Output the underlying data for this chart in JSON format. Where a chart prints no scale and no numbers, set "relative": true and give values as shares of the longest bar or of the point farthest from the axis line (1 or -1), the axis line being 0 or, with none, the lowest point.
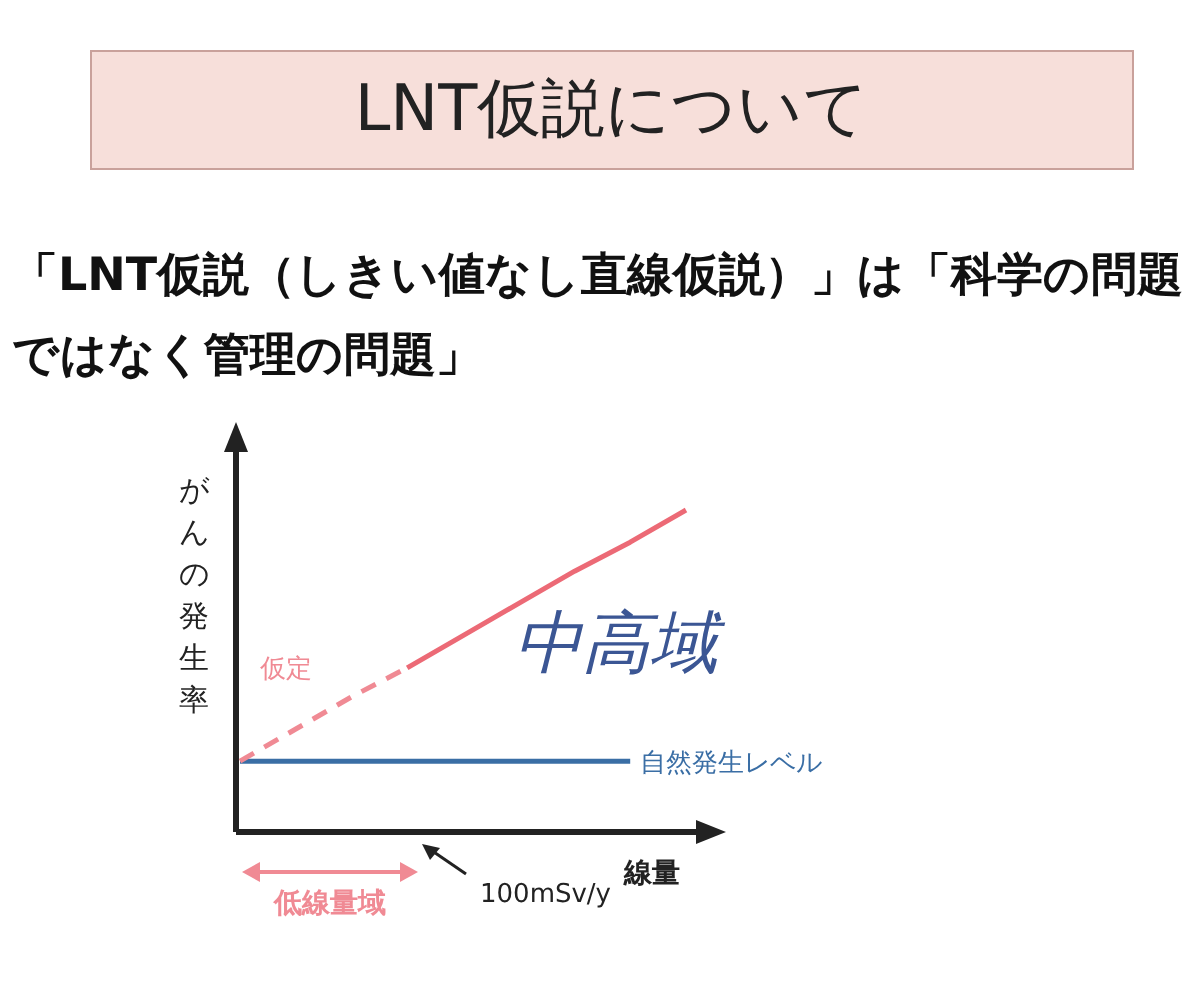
{
  "chart_data": {
    "type": "line",
    "relative": true,
    "title": "LNT仮説について",
    "subtitle": "「LNT仮説（しきい値なし直線仮説）」は「科学の問題ではなく管理の問題」",
    "ylabel": "がんの発生率",
    "xlabel": "線量",
    "categories": [
      null,
      null,
      null,
      null,
      null,
      null,
      null,
      null,
      null
    ],
    "series": [
      {
        "name": "自然発生レベル",
        "color": "#3a6ea5",
        "line_style": "solid",
        "values": [
          0.22,
          0.22,
          0.22,
          0.22,
          0.22,
          0.22,
          0.22,
          0.22,
          null
        ]
      },
      {
        "name": "仮定",
        "color": "#f08a94",
        "line_style": "dashed",
        "values": [
          0.22,
          0.32,
          0.42,
          0.51,
          null,
          null,
          null,
          null,
          null
        ]
      },
      {
        "color": "#ec6a76",
        "line_style": "solid",
        "values": [
          null,
          null,
          null,
          0.51,
          0.61,
          0.71,
          0.81,
          0.9,
          1.0
        ]
      }
    ],
    "annotations": [
      "中高域",
      "低線量域",
      "100mSv/y"
    ]
  }
}
